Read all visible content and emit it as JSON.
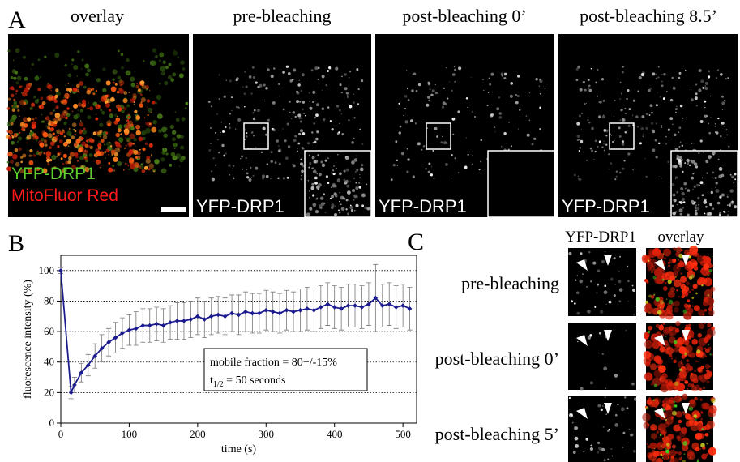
{
  "panel_a": {
    "label": "A",
    "titles": [
      "overlay",
      "pre-bleaching",
      "post-bleaching 0’",
      "post-bleaching 8.5’"
    ],
    "overlay_labels": [
      "YFP-DRP1",
      "MitoFluor Red"
    ],
    "image_labels": [
      "YFP-DRP1",
      "YFP-DRP1",
      "YFP-DRP1"
    ]
  },
  "chart_data": {
    "type": "line",
    "label": "B",
    "x_label": "time (s)",
    "y_label": "fluorescence intensity (%)",
    "x": [
      0,
      15,
      20,
      30,
      40,
      50,
      60,
      70,
      80,
      90,
      100,
      110,
      120,
      130,
      140,
      150,
      160,
      170,
      180,
      190,
      200,
      210,
      220,
      230,
      240,
      250,
      260,
      270,
      280,
      290,
      300,
      310,
      320,
      330,
      340,
      350,
      360,
      370,
      380,
      390,
      400,
      410,
      420,
      430,
      440,
      450,
      460,
      470,
      480,
      490,
      500,
      510
    ],
    "series": [
      {
        "color": "#1c1c8f",
        "values": [
          100,
          20,
          25,
          33,
          38,
          44,
          49,
          53,
          56,
          59,
          61,
          62,
          64,
          64,
          65,
          64,
          66,
          67,
          67,
          68,
          70,
          68,
          70,
          71,
          70,
          72,
          71,
          73,
          72,
          72,
          74,
          73,
          72,
          74,
          73,
          74,
          75,
          74,
          76,
          78,
          76,
          75,
          77,
          77,
          76,
          78,
          82,
          77,
          78,
          76,
          77,
          75
        ],
        "errors": [
          2,
          4,
          5,
          6,
          7,
          8,
          9,
          9,
          10,
          10,
          10,
          11,
          11,
          11,
          11,
          11,
          11,
          12,
          12,
          12,
          12,
          12,
          12,
          12,
          12,
          12,
          13,
          13,
          13,
          13,
          13,
          13,
          13,
          13,
          13,
          14,
          14,
          14,
          14,
          14,
          14,
          14,
          14,
          14,
          14,
          14,
          22,
          14,
          14,
          14,
          14,
          14
        ]
      }
    ],
    "xlim": [
      0,
      520
    ],
    "ylim": [
      0,
      110
    ],
    "xticks": [
      0,
      100,
      200,
      300,
      400,
      500
    ],
    "yticks": [
      0,
      20,
      40,
      60,
      80,
      100
    ],
    "grid": true,
    "annotation": {
      "mobile_fraction": "mobile fraction = 80+/-15%",
      "half_time_symbol": "t",
      "half_time_subscript": "1/2",
      "half_time_text": " = 50 seconds"
    }
  },
  "panel_c": {
    "label": "C",
    "column_headers": [
      "YFP-DRP1",
      "overlay"
    ],
    "row_labels": [
      "pre-bleaching",
      "post-bleaching 0’",
      "post-bleaching 5’"
    ]
  }
}
